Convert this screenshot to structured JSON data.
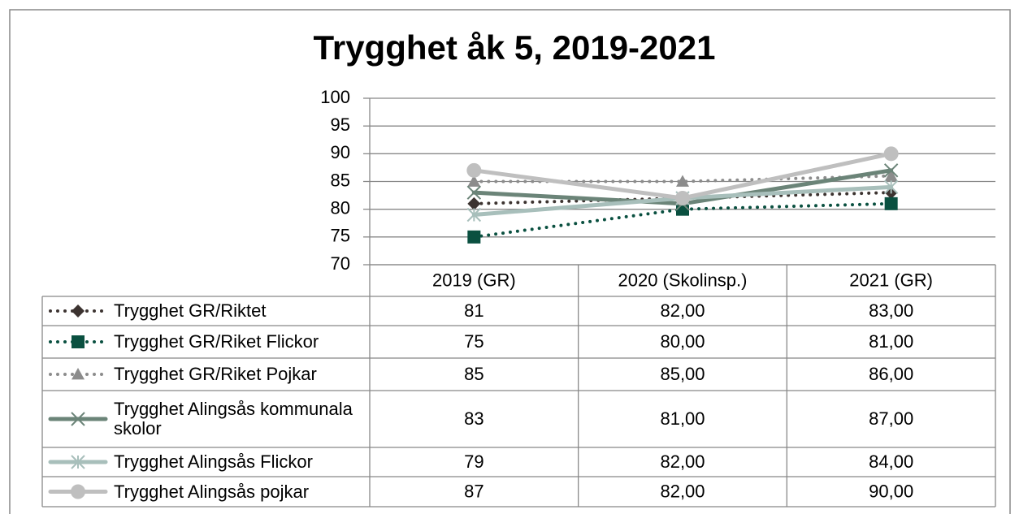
{
  "chart_data": {
    "type": "line",
    "title": "Trygghet åk 5, 2019-2021",
    "categories": [
      "2019 (GR)",
      "2020 (Skolinsp.)",
      "2021 (GR)"
    ],
    "ylim": [
      70,
      100
    ],
    "yticks": [
      70,
      75,
      80,
      85,
      90,
      95,
      100
    ],
    "grid": true,
    "series": [
      {
        "name": "Trygghet GR/Riktet",
        "color": "#3c3330",
        "marker": "diamond",
        "line_style": "dotted",
        "values": [
          81,
          82,
          83
        ],
        "value_labels": [
          "81",
          "82,00",
          "83,00"
        ]
      },
      {
        "name": "Trygghet GR/Riket Flickor",
        "color": "#0a5040",
        "marker": "square",
        "line_style": "dotted",
        "values": [
          75,
          80,
          81
        ],
        "value_labels": [
          "75",
          "80,00",
          "81,00"
        ]
      },
      {
        "name": "Trygghet GR/Riket Pojkar",
        "color": "#8c8c8c",
        "marker": "triangle",
        "line_style": "dotted",
        "values": [
          85,
          85,
          86
        ],
        "value_labels": [
          "85",
          "85,00",
          "86,00"
        ]
      },
      {
        "name": "Trygghet Alingsås kommunala skolor",
        "color": "#6b8478",
        "marker": "x",
        "line_style": "solid",
        "values": [
          83,
          81,
          87
        ],
        "value_labels": [
          "83",
          "81,00",
          "87,00"
        ]
      },
      {
        "name": "Trygghet Alingsås Flickor",
        "color": "#a8bfbb",
        "marker": "star",
        "line_style": "solid",
        "values": [
          79,
          82,
          84
        ],
        "value_labels": [
          "79",
          "82,00",
          "84,00"
        ]
      },
      {
        "name": "Trygghet Alingsås pojkar",
        "color": "#bfbfbf",
        "marker": "circle",
        "line_style": "solid",
        "values": [
          87,
          82,
          90
        ],
        "value_labels": [
          "87",
          "82,00",
          "90,00"
        ]
      }
    ]
  }
}
